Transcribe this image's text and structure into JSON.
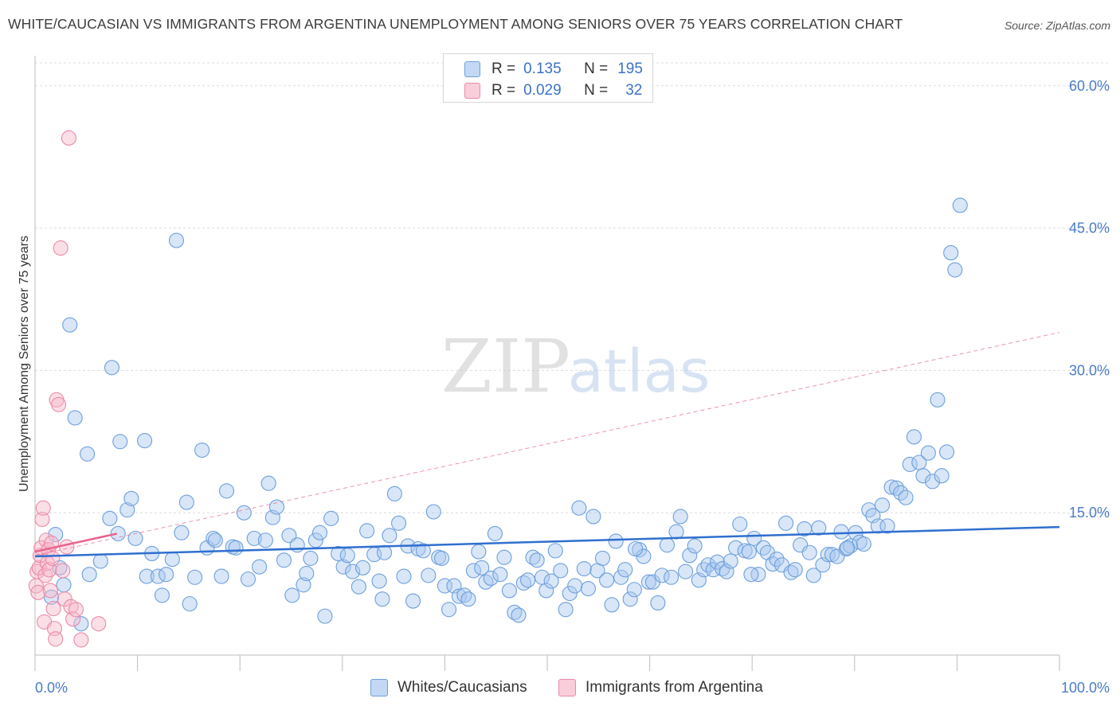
{
  "title": "WHITE/CAUCASIAN VS IMMIGRANTS FROM ARGENTINA UNEMPLOYMENT AMONG SENIORS OVER 75 YEARS CORRELATION CHART",
  "source": "Source: ZipAtlas.com",
  "watermark": {
    "zip": "ZIP",
    "atlas": "atlas"
  },
  "legend": {
    "rows": [
      {
        "r_label": "R =",
        "r_value": "0.135",
        "n_label": "N =",
        "n_value": "195"
      },
      {
        "r_label": "R =",
        "r_value": "0.029",
        "n_label": "N =",
        "n_value": "32"
      }
    ]
  },
  "colors": {
    "blue_fill": "#a9c8f0",
    "blue_stroke": "#6d9fdc",
    "blue_line": "#2f6fcf",
    "pink_fill": "#f6b8ca",
    "pink_stroke": "#ea8aa8",
    "pink_line": "#e8648c",
    "tick_text": "#4a7cc8",
    "grid": "#dcdcdc"
  },
  "chart_data": {
    "type": "scatter",
    "title": "WHITE/CAUCASIAN VS IMMIGRANTS FROM ARGENTINA UNEMPLOYMENT AMONG SENIORS OVER 75 YEARS CORRELATION CHART",
    "xlabel": "",
    "ylabel": "Unemployment Among Seniors over 75 years",
    "xlim": [
      0,
      100
    ],
    "ylim": [
      0,
      63
    ],
    "x_tick_labels": [
      "0.0%",
      "100.0%"
    ],
    "y_ticks": [
      15,
      30,
      45,
      60
    ],
    "y_tick_labels": [
      "15.0%",
      "30.0%",
      "45.0%",
      "60.0%"
    ],
    "grid": true,
    "series": [
      {
        "name": "Whites/Caucasians",
        "r": 0.135,
        "n": 195,
        "trend": {
          "x": [
            0,
            100
          ],
          "y": [
            10.4,
            13.5
          ]
        },
        "points": [
          [
            1.6,
            6.1
          ],
          [
            2.0,
            12.7
          ],
          [
            2.4,
            9.2
          ],
          [
            2.8,
            7.4
          ],
          [
            3.4,
            34.8
          ],
          [
            3.9,
            25.0
          ],
          [
            4.5,
            3.3
          ],
          [
            5.1,
            21.2
          ],
          [
            5.3,
            8.5
          ],
          [
            6.4,
            9.9
          ],
          [
            7.5,
            30.3
          ],
          [
            7.3,
            14.4
          ],
          [
            8.1,
            12.8
          ],
          [
            8.3,
            22.5
          ],
          [
            9.0,
            15.3
          ],
          [
            9.4,
            16.5
          ],
          [
            9.8,
            12.3
          ],
          [
            10.7,
            22.6
          ],
          [
            10.9,
            8.3
          ],
          [
            11.4,
            10.7
          ],
          [
            12.0,
            8.3
          ],
          [
            12.4,
            6.3
          ],
          [
            12.8,
            8.5
          ],
          [
            13.4,
            10.1
          ],
          [
            13.8,
            43.7
          ],
          [
            14.3,
            12.9
          ],
          [
            14.8,
            16.1
          ],
          [
            15.1,
            5.4
          ],
          [
            15.6,
            8.2
          ],
          [
            16.3,
            21.6
          ],
          [
            16.8,
            11.3
          ],
          [
            17.4,
            12.3
          ],
          [
            17.6,
            12.1
          ],
          [
            18.2,
            8.3
          ],
          [
            18.7,
            17.3
          ],
          [
            19.3,
            11.4
          ],
          [
            19.6,
            11.3
          ],
          [
            20.4,
            15.0
          ],
          [
            20.8,
            8.0
          ],
          [
            21.4,
            12.3
          ],
          [
            21.9,
            9.3
          ],
          [
            22.5,
            12.1
          ],
          [
            22.8,
            18.1
          ],
          [
            23.2,
            14.5
          ],
          [
            23.6,
            15.6
          ],
          [
            24.3,
            10.0
          ],
          [
            24.8,
            12.6
          ],
          [
            25.1,
            6.3
          ],
          [
            25.6,
            11.6
          ],
          [
            26.2,
            7.4
          ],
          [
            26.5,
            8.6
          ],
          [
            26.9,
            10.2
          ],
          [
            27.4,
            12.1
          ],
          [
            27.8,
            12.9
          ],
          [
            28.3,
            4.1
          ],
          [
            28.9,
            14.4
          ],
          [
            29.6,
            10.7
          ],
          [
            30.1,
            9.3
          ],
          [
            30.5,
            10.5
          ],
          [
            31.0,
            8.8
          ],
          [
            31.6,
            7.2
          ],
          [
            32.0,
            9.2
          ],
          [
            32.4,
            13.1
          ],
          [
            33.1,
            10.6
          ],
          [
            33.6,
            7.8
          ],
          [
            34.1,
            10.8
          ],
          [
            34.6,
            12.6
          ],
          [
            35.1,
            17.0
          ],
          [
            35.5,
            13.9
          ],
          [
            36.0,
            8.3
          ],
          [
            36.4,
            11.5
          ],
          [
            36.9,
            5.7
          ],
          [
            37.4,
            11.2
          ],
          [
            37.9,
            11.0
          ],
          [
            38.4,
            8.4
          ],
          [
            38.9,
            15.1
          ],
          [
            39.4,
            10.3
          ],
          [
            40.0,
            7.3
          ],
          [
            40.4,
            4.8
          ],
          [
            40.9,
            7.3
          ],
          [
            41.4,
            6.2
          ],
          [
            41.9,
            6.3
          ],
          [
            42.3,
            5.9
          ],
          [
            42.8,
            8.9
          ],
          [
            43.3,
            10.9
          ],
          [
            43.6,
            9.2
          ],
          [
            44.0,
            7.7
          ],
          [
            44.5,
            8.1
          ],
          [
            44.9,
            12.8
          ],
          [
            45.4,
            8.5
          ],
          [
            45.8,
            10.3
          ],
          [
            46.3,
            6.8
          ],
          [
            46.8,
            4.5
          ],
          [
            47.2,
            4.2
          ],
          [
            47.7,
            7.6
          ],
          [
            48.1,
            7.9
          ],
          [
            48.6,
            10.3
          ],
          [
            49.0,
            10.0
          ],
          [
            49.5,
            8.2
          ],
          [
            49.9,
            6.8
          ],
          [
            50.4,
            7.8
          ],
          [
            50.8,
            11.0
          ],
          [
            51.3,
            8.9
          ],
          [
            51.8,
            4.8
          ],
          [
            52.2,
            6.5
          ],
          [
            52.7,
            7.3
          ],
          [
            53.1,
            15.5
          ],
          [
            53.6,
            9.1
          ],
          [
            54.0,
            7.0
          ],
          [
            54.5,
            14.6
          ],
          [
            54.9,
            8.9
          ],
          [
            55.4,
            10.2
          ],
          [
            55.8,
            7.9
          ],
          [
            56.3,
            5.3
          ],
          [
            56.7,
            12.0
          ],
          [
            57.2,
            8.2
          ],
          [
            57.6,
            9.0
          ],
          [
            58.1,
            5.9
          ],
          [
            58.5,
            6.9
          ],
          [
            59.0,
            11.1
          ],
          [
            59.4,
            10.4
          ],
          [
            59.9,
            7.7
          ],
          [
            60.3,
            7.7
          ],
          [
            60.8,
            5.5
          ],
          [
            61.2,
            8.4
          ],
          [
            61.7,
            11.6
          ],
          [
            62.1,
            8.2
          ],
          [
            62.6,
            13.0
          ],
          [
            63.0,
            14.6
          ],
          [
            63.5,
            8.8
          ],
          [
            63.9,
            10.5
          ],
          [
            64.4,
            11.5
          ],
          [
            64.8,
            7.9
          ],
          [
            65.3,
            9.0
          ],
          [
            65.7,
            9.5
          ],
          [
            66.2,
            9.0
          ],
          [
            66.6,
            9.8
          ],
          [
            67.1,
            9.1
          ],
          [
            67.5,
            8.8
          ],
          [
            67.9,
            9.9
          ],
          [
            68.4,
            11.3
          ],
          [
            68.8,
            13.8
          ],
          [
            69.3,
            11.0
          ],
          [
            69.7,
            10.9
          ],
          [
            70.2,
            12.3
          ],
          [
            70.6,
            8.5
          ],
          [
            71.1,
            11.3
          ],
          [
            71.5,
            10.8
          ],
          [
            72.0,
            9.6
          ],
          [
            72.4,
            10.1
          ],
          [
            72.9,
            9.5
          ],
          [
            73.3,
            13.9
          ],
          [
            73.8,
            8.7
          ],
          [
            74.2,
            9.0
          ],
          [
            74.7,
            11.6
          ],
          [
            75.1,
            13.3
          ],
          [
            75.6,
            10.8
          ],
          [
            76.0,
            8.4
          ],
          [
            76.5,
            13.4
          ],
          [
            76.9,
            9.5
          ],
          [
            77.4,
            10.6
          ],
          [
            77.8,
            10.6
          ],
          [
            78.3,
            10.4
          ],
          [
            78.7,
            13.0
          ],
          [
            79.2,
            11.2
          ],
          [
            79.6,
            11.5
          ],
          [
            80.1,
            12.9
          ],
          [
            80.5,
            11.9
          ],
          [
            80.9,
            11.7
          ],
          [
            81.4,
            15.3
          ],
          [
            81.8,
            14.7
          ],
          [
            82.3,
            13.6
          ],
          [
            82.7,
            15.8
          ],
          [
            83.2,
            13.6
          ],
          [
            83.6,
            17.7
          ],
          [
            84.1,
            17.6
          ],
          [
            84.5,
            17.1
          ],
          [
            85.0,
            16.6
          ],
          [
            85.4,
            20.1
          ],
          [
            85.8,
            23.0
          ],
          [
            86.3,
            20.3
          ],
          [
            86.7,
            18.9
          ],
          [
            87.2,
            21.3
          ],
          [
            87.6,
            18.3
          ],
          [
            88.1,
            26.9
          ],
          [
            88.5,
            18.9
          ],
          [
            89.0,
            21.4
          ],
          [
            89.4,
            42.4
          ],
          [
            89.8,
            40.6
          ],
          [
            90.3,
            47.4
          ],
          [
            79.3,
            11.3
          ],
          [
            33.9,
            5.9
          ],
          [
            39.7,
            10.2
          ],
          [
            58.6,
            11.2
          ],
          [
            69.9,
            8.5
          ]
        ]
      },
      {
        "name": "Immigrants from Argentina",
        "r": 0.029,
        "n": 32,
        "trend": {
          "x": [
            0,
            8
          ],
          "y": [
            10.9,
            12.8
          ]
        },
        "extended_trend": {
          "x": [
            0,
            100
          ],
          "y": [
            10.5,
            34.0
          ]
        },
        "points": [
          [
            0.1,
            7.3
          ],
          [
            0.2,
            8.8
          ],
          [
            0.3,
            6.6
          ],
          [
            0.4,
            9.2
          ],
          [
            0.5,
            10.5
          ],
          [
            0.6,
            11.3
          ],
          [
            0.7,
            14.3
          ],
          [
            0.8,
            15.5
          ],
          [
            0.9,
            3.5
          ],
          [
            1.0,
            8.4
          ],
          [
            1.1,
            12.1
          ],
          [
            1.2,
            9.7
          ],
          [
            1.3,
            11.1
          ],
          [
            1.4,
            9.0
          ],
          [
            1.5,
            6.8
          ],
          [
            1.6,
            11.8
          ],
          [
            1.7,
            10.2
          ],
          [
            1.8,
            4.9
          ],
          [
            1.9,
            2.8
          ],
          [
            2.0,
            1.7
          ],
          [
            2.1,
            26.9
          ],
          [
            2.3,
            26.4
          ],
          [
            2.5,
            42.9
          ],
          [
            2.7,
            8.9
          ],
          [
            2.9,
            5.9
          ],
          [
            3.1,
            11.4
          ],
          [
            3.3,
            54.5
          ],
          [
            3.5,
            5.1
          ],
          [
            3.7,
            3.8
          ],
          [
            4.0,
            4.8
          ],
          [
            4.5,
            1.6
          ],
          [
            6.2,
            3.3
          ]
        ]
      }
    ]
  },
  "bottom_legend": {
    "items": [
      "Whites/Caucasians",
      "Immigrants from Argentina"
    ]
  }
}
